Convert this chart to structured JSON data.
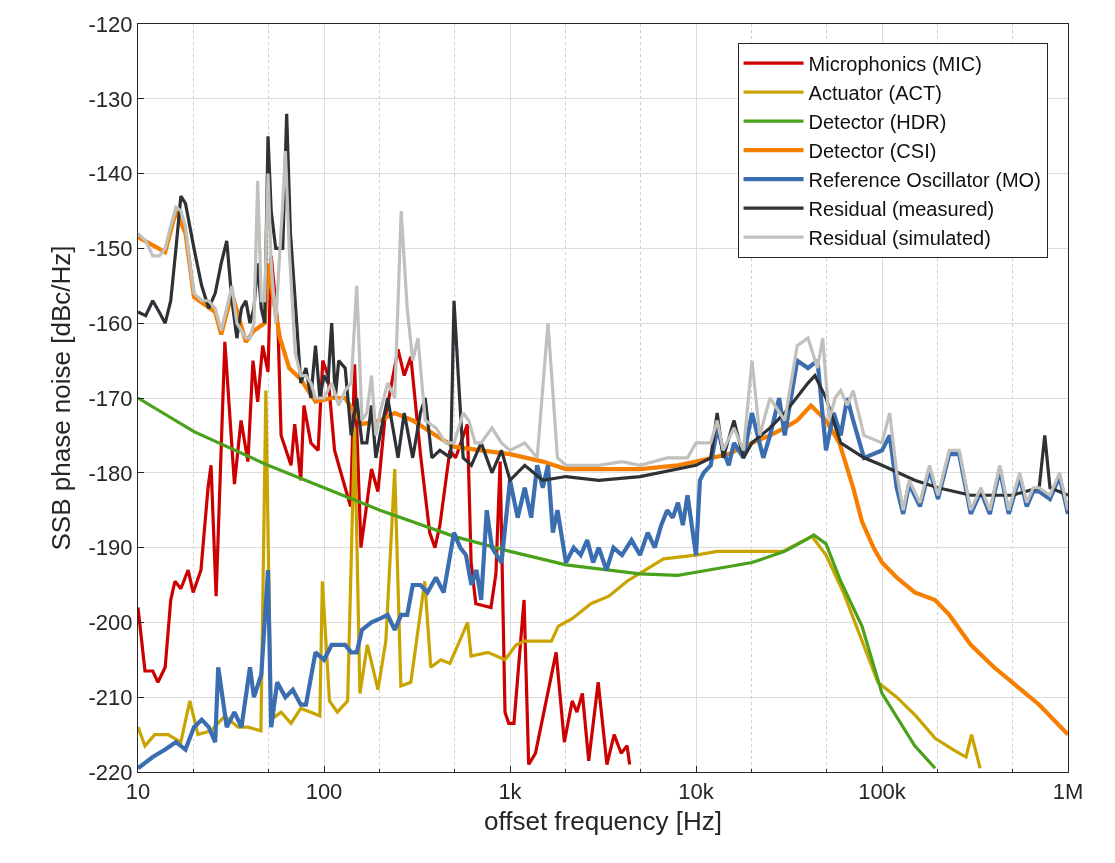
{
  "chart_data": {
    "type": "line",
    "xlabel": "offset frequency [Hz]",
    "ylabel": "SSB phase noise [dBc/Hz]",
    "log": "x",
    "grid": true,
    "legend": "top right",
    "xlim": [
      10,
      1000000
    ],
    "ylim": [
      -220,
      -120
    ],
    "xticks": [
      {
        "value": 10,
        "label": "10"
      },
      {
        "value": 100,
        "label": "100"
      },
      {
        "value": 1000,
        "label": "1k"
      },
      {
        "value": 10000,
        "label": "10k"
      },
      {
        "value": 100000,
        "label": "100k"
      },
      {
        "value": 1000000,
        "label": "1M"
      }
    ],
    "yticks": [
      -220,
      -210,
      -200,
      -190,
      -180,
      -170,
      -160,
      -150,
      -140,
      -130,
      -120
    ],
    "series": [
      {
        "name": "Microphonics (MIC)",
        "color": "#cc0000",
        "x": [
          10,
          10.9,
          12,
          12.8,
          14,
          15,
          15.8,
          17,
          18.6,
          19.8,
          21.8,
          23.8,
          24.7,
          26.3,
          29.3,
          33,
          35.8,
          39,
          41.5,
          44,
          46.8,
          50,
          52,
          56.6,
          58.8,
          66.5,
          69.6,
          75,
          78,
          85,
          93,
          98.5,
          105,
          114,
          130,
          139,
          146,
          158,
          180,
          195,
          212,
          250,
          270,
          293,
          330,
          370,
          395,
          420,
          475,
          510,
          590,
          618,
          655,
          790,
          840,
          885,
          940,
          985,
          1050,
          1190,
          1260,
          1370,
          1770,
          1960,
          2160,
          2290,
          2450,
          2650,
          2980,
          3320,
          3630,
          3960,
          4260,
          4400
        ],
        "values": [
          -198,
          -206.5,
          -206.5,
          -208,
          -206,
          -197,
          -194.5,
          -195.5,
          -193,
          -196,
          -193,
          -182,
          -179,
          -196.5,
          -162.5,
          -181.5,
          -173,
          -178.5,
          -165,
          -170.5,
          -163,
          -166.5,
          -151,
          -160.5,
          -175,
          -179,
          -173.5,
          -181,
          -171,
          -176,
          -177,
          -165,
          -167,
          -177,
          -182,
          -184.5,
          -165.5,
          -190,
          -179.5,
          -182.5,
          -173,
          -163.5,
          -167,
          -164.5,
          -177.5,
          -188,
          -190,
          -187,
          -177,
          -178,
          -173.5,
          -192,
          -197.5,
          -198,
          -193.5,
          -178.5,
          -212,
          -213.5,
          -213.5,
          -197,
          -219,
          -217.5,
          -204,
          -216,
          -210.5,
          -212,
          -209.5,
          -218.5,
          -208,
          -219,
          -215,
          -217.5,
          -216.5,
          -219
        ]
      },
      {
        "name": "Actuator (ACT)",
        "color": "#c9a400",
        "x": [
          10,
          10.9,
          12.3,
          14.5,
          17,
          19,
          21,
          24.7,
          29.3,
          34.5,
          39,
          45.8,
          48.7,
          51.8,
          58.8,
          66.5,
          75,
          85,
          95,
          98,
          107,
          118,
          134,
          146,
          156,
          171,
          195,
          215,
          240,
          259,
          293,
          348,
          375,
          425,
          475,
          592,
          618,
          762,
          940,
          1080,
          1200,
          1670,
          1820,
          2160,
          2720,
          3400,
          4260,
          5330,
          6690,
          10000,
          13000,
          16200,
          20400,
          29300,
          42000,
          50000,
          62000,
          81000,
          95000,
          120000,
          152000,
          193000,
          241000,
          283000,
          303000,
          337000
        ],
        "values": [
          -214,
          -216.5,
          -215,
          -215,
          -216,
          -210.5,
          -215,
          -214.5,
          -212.5,
          -214,
          -214,
          -214.5,
          -169,
          -213,
          -212,
          -213.5,
          -211.5,
          -212,
          -212.5,
          -194.5,
          -210.5,
          -212,
          -210.5,
          -174,
          -209.5,
          -203,
          -209,
          -202.5,
          -179.5,
          -208.5,
          -208,
          -194.5,
          -206,
          -205,
          -205.5,
          -200,
          -204.5,
          -204,
          -205,
          -203,
          -202.5,
          -202.5,
          -200.5,
          -199.5,
          -197.5,
          -196.5,
          -194.5,
          -193,
          -191.5,
          -191,
          -190.5,
          -190.5,
          -190.5,
          -190.5,
          -188.5,
          -191,
          -196,
          -203.5,
          -208,
          -210,
          -212.5,
          -215.5,
          -217,
          -218,
          -215,
          -219.5
        ]
      },
      {
        "name": "Detector (HDR)",
        "color": "#4aa11a",
        "x": [
          10,
          20,
          50,
          100,
          200,
          500,
          1000,
          2000,
          5000,
          8000,
          10000,
          20000,
          30000,
          40000,
          43000,
          50000,
          60000,
          78000,
          100000,
          150000,
          193000
        ],
        "values": [
          -170,
          -174.5,
          -179,
          -182,
          -185,
          -188.5,
          -190.5,
          -192.3,
          -193.5,
          -193.7,
          -193.3,
          -192,
          -190.5,
          -188.8,
          -188.3,
          -189.5,
          -194.5,
          -200.5,
          -209.5,
          -216.5,
          -219.5
        ]
      },
      {
        "name": "Detector (CSI)",
        "color": "#f77f00",
        "x": [
          10,
          14,
          16,
          18,
          20,
          26,
          28,
          32,
          38,
          42,
          48,
          50,
          52,
          58,
          65,
          75,
          90,
          110,
          130,
          160,
          200,
          240,
          300,
          400,
          500,
          700,
          1000,
          1500,
          2000,
          3000,
          5000,
          8000,
          10000,
          15000,
          20000,
          25000,
          30000,
          35000,
          41500,
          50000,
          59000,
          70000,
          78000,
          90000,
          100000,
          120000,
          150000,
          193000,
          230000,
          300000,
          400000,
          500000,
          700000,
          1000000
        ],
        "values": [
          -148.5,
          -150.5,
          -145,
          -148,
          -156.5,
          -158.5,
          -161.5,
          -156,
          -162.5,
          -161,
          -160,
          -152,
          -155,
          -162,
          -166,
          -167.5,
          -170.5,
          -170,
          -170,
          -173.5,
          -173,
          -172,
          -173,
          -175,
          -176.5,
          -177,
          -177.5,
          -178.5,
          -179.5,
          -179.5,
          -179.5,
          -179,
          -178.5,
          -177.5,
          -176,
          -175,
          -174,
          -173,
          -171,
          -173,
          -176,
          -182,
          -186.5,
          -190,
          -192,
          -194,
          -196,
          -197,
          -199,
          -203,
          -206,
          -208,
          -211,
          -215
        ]
      },
      {
        "name": "Reference Oscillator (MO)",
        "color": "#3a6eb0",
        "x": [
          10,
          12,
          14,
          16,
          18,
          20,
          22,
          24,
          26,
          27,
          30,
          33,
          36,
          40,
          42,
          46,
          50,
          52,
          56,
          62,
          68,
          75,
          80,
          90,
          100,
          110,
          120,
          130,
          140,
          150,
          160,
          180,
          200,
          220,
          240,
          260,
          280,
          300,
          330,
          360,
          400,
          440,
          500,
          540,
          580,
          620,
          660,
          700,
          750,
          800,
          900,
          1000,
          1100,
          1200,
          1300,
          1400,
          1500,
          1600,
          1700,
          1800,
          2000,
          2200,
          2400,
          2600,
          2800,
          3000,
          3300,
          3600,
          4000,
          4500,
          5000,
          5500,
          6000,
          6500,
          7000,
          7500,
          8000,
          8500,
          9000,
          10000,
          10500,
          11000,
          12000,
          13000,
          14000,
          15000,
          16000,
          18000,
          20000,
          23000,
          25000,
          28000,
          30000,
          35000,
          40000,
          45000,
          50000,
          55000,
          60000,
          65000,
          70000,
          80000,
          100000,
          110000,
          120000,
          130000,
          140000,
          160000,
          180000,
          200000,
          230000,
          260000,
          300000,
          340000,
          380000,
          430000,
          480000,
          550000,
          600000,
          650000,
          700000,
          800000,
          900000,
          1000000
        ],
        "values": [
          -219.5,
          -218,
          -217,
          -216,
          -217,
          -214,
          -213,
          -214,
          -216,
          -206,
          -214,
          -212,
          -214,
          -206,
          -210,
          -207,
          -193,
          -214,
          -208,
          -210,
          -209,
          -211,
          -211,
          -204,
          -205,
          -203,
          -203,
          -203,
          -204,
          -204,
          -201,
          -200,
          -199.5,
          -199,
          -201,
          -199,
          -199,
          -195,
          -195,
          -196,
          -194,
          -196,
          -188,
          -190,
          -191,
          -195,
          -193,
          -197,
          -185,
          -190,
          -192,
          -181,
          -186,
          -182,
          -186,
          -179,
          -182,
          -179,
          -188,
          -185,
          -192,
          -190,
          -191,
          -189,
          -192,
          -190,
          -193,
          -190,
          -191,
          -189,
          -191,
          -188,
          -190,
          -187,
          -185,
          -186,
          -184,
          -187,
          -183,
          -191,
          -181,
          -180,
          -179,
          -174,
          -177,
          -179,
          -176,
          -178,
          -172,
          -178,
          -175,
          -170,
          -175,
          -165,
          -166,
          -165,
          -177,
          -172,
          -175,
          -170,
          -173,
          -178,
          -177,
          -175,
          -182,
          -185.5,
          -181.5,
          -184.5,
          -179.5,
          -183.5,
          -177.5,
          -177.5,
          -185.5,
          -182.5,
          -185.5,
          -179.5,
          -185.5,
          -180.5,
          -184.5,
          -182.5,
          -182.5,
          -183.5,
          -180.5,
          -185.5
        ]
      },
      {
        "name": "Residual (measured)",
        "color": "#2e3236",
        "x": [
          10,
          11,
          12,
          13,
          14,
          15,
          16,
          17,
          18,
          20,
          22,
          24,
          26,
          28,
          30,
          32,
          34,
          36,
          38,
          40,
          42,
          44,
          46,
          48,
          50,
          52,
          55,
          60,
          63,
          66,
          70,
          75,
          80,
          85,
          90,
          95,
          100,
          105,
          110,
          115,
          120,
          130,
          140,
          150,
          160,
          170,
          180,
          190,
          200,
          220,
          250,
          270,
          300,
          330,
          350,
          380,
          420,
          480,
          500,
          530,
          560,
          620,
          700,
          800,
          900,
          1000,
          1200,
          1500,
          2000,
          3000,
          5000,
          10000,
          12000,
          13000,
          14000,
          16000,
          18000,
          20000,
          25000,
          30000,
          40000,
          43600,
          50000,
          60000,
          80000,
          100000,
          150000,
          200000,
          300000,
          500000,
          700000,
          750000,
          800000,
          1000000
        ],
        "values": [
          -158.5,
          -159,
          -157,
          -158.5,
          -160,
          -157,
          -150,
          -143,
          -144,
          -150,
          -155,
          -158,
          -156,
          -152,
          -149,
          -157,
          -162,
          -158,
          -157,
          -160,
          -158,
          -152,
          -158,
          -160,
          -135,
          -145,
          -150,
          -150,
          -132,
          -148,
          -157,
          -168,
          -166,
          -170,
          -163,
          -170,
          -167,
          -168,
          -160,
          -170,
          -165,
          -166,
          -175,
          -170,
          -176,
          -176,
          -171,
          -178,
          -175,
          -170,
          -178,
          -172,
          -178,
          -172,
          -170,
          -178,
          -177,
          -178,
          -157,
          -168,
          -178,
          -179,
          -176,
          -180,
          -177,
          -181,
          -179,
          -181,
          -180.5,
          -181,
          -180.5,
          -179,
          -178,
          -172,
          -178,
          -173,
          -178,
          -176,
          -174,
          -172,
          -168,
          -167,
          -170,
          -176,
          -178,
          -179,
          -181,
          -182,
          -183,
          -183,
          -182,
          -175,
          -182,
          -183
        ]
      },
      {
        "name": "Residual (simulated)",
        "color": "#c0c0bc",
        "x": [
          10,
          11,
          12,
          13,
          14,
          15,
          16,
          17,
          18,
          19,
          20,
          22,
          24,
          26,
          28,
          30,
          32,
          34,
          36,
          38,
          40,
          42,
          44,
          46,
          48,
          50,
          52,
          55,
          58,
          60,
          62,
          65,
          70,
          75,
          80,
          85,
          90,
          100,
          110,
          120,
          130,
          140,
          150,
          160,
          170,
          180,
          190,
          200,
          220,
          240,
          260,
          280,
          300,
          320,
          350,
          400,
          450,
          500,
          560,
          600,
          650,
          700,
          800,
          900,
          1000,
          1200,
          1400,
          1600,
          1800,
          2000,
          3000,
          4000,
          5000,
          7000,
          9000,
          10000,
          12000,
          13000,
          14000,
          16000,
          18000,
          20000,
          22000,
          25000,
          30000,
          35000,
          40000,
          45000,
          48000,
          52000,
          56000,
          60000,
          65000,
          70000,
          80000,
          100000,
          110000,
          120000,
          130000,
          140000,
          160000,
          180000,
          200000,
          230000,
          260000,
          300000,
          340000,
          380000,
          430000,
          480000,
          550000,
          600000,
          650000,
          700000,
          800000,
          900000,
          1000000
        ],
        "values": [
          -148,
          -149,
          -151,
          -151,
          -150,
          -147,
          -144.5,
          -145,
          -147,
          -152,
          -156,
          -157,
          -157,
          -158,
          -161,
          -158,
          -155,
          -160,
          -161,
          -162,
          -162,
          -160,
          -141,
          -157,
          -157,
          -140,
          -152,
          -160,
          -150,
          -144,
          -137,
          -150,
          -164,
          -167,
          -167,
          -168,
          -170,
          -170,
          -168,
          -171,
          -169,
          -168,
          -155,
          -173,
          -172,
          -167,
          -175,
          -172,
          -168,
          -170,
          -145,
          -158,
          -165,
          -162,
          -173,
          -174,
          -176,
          -176,
          -172,
          -173,
          -176,
          -176,
          -174,
          -176,
          -177,
          -176,
          -178,
          -160,
          -178,
          -179,
          -179,
          -178.5,
          -179,
          -178,
          -178,
          -176,
          -176,
          -173,
          -177,
          -174,
          -177,
          -165,
          -175,
          -170,
          -173,
          -163,
          -162,
          -166,
          -162,
          -173,
          -170,
          -169,
          -171,
          -169,
          -175,
          -176,
          -172,
          -180,
          -185,
          -181,
          -184,
          -179,
          -183,
          -177,
          -177,
          -185,
          -182,
          -185,
          -179,
          -185,
          -180,
          -184,
          -182,
          -182,
          -183,
          -180,
          -185
        ]
      }
    ]
  }
}
